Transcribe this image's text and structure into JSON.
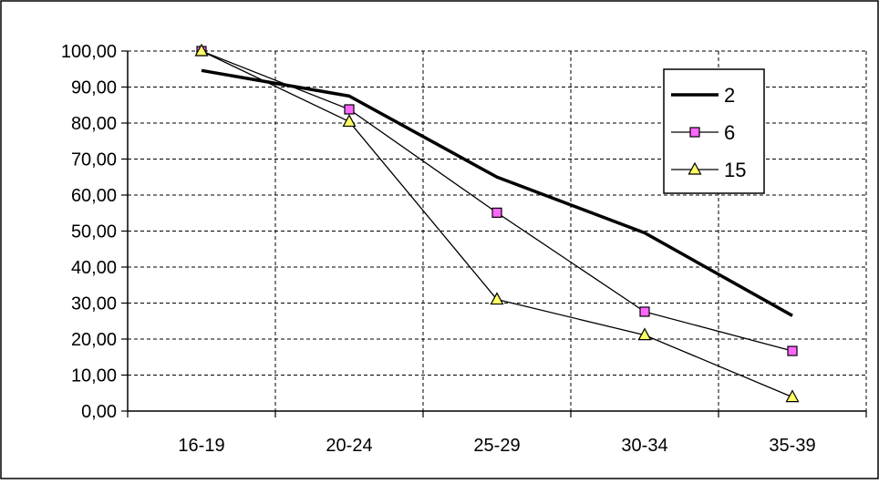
{
  "chart_data": {
    "type": "line",
    "categories": [
      "16-19",
      "20-24",
      "25-29",
      "30-34",
      "35-39"
    ],
    "y_ticks": [
      "0,00",
      "10,00",
      "20,00",
      "30,00",
      "40,00",
      "50,00",
      "60,00",
      "70,00",
      "80,00",
      "90,00",
      "100,00"
    ],
    "ylim": [
      0,
      100
    ],
    "grid": true,
    "legend_position": "top-right",
    "series": [
      {
        "name": "2",
        "values": [
          94.6,
          87.5,
          65.0,
          49.5,
          26.5
        ],
        "color": "#000000",
        "marker": "none",
        "line": "thick"
      },
      {
        "name": "6",
        "values": [
          100.0,
          83.8,
          55.1,
          27.6,
          16.7
        ],
        "color": "#000000",
        "marker": "square",
        "marker_color": "#ff66ff",
        "line": "thin"
      },
      {
        "name": "15",
        "values": [
          100.0,
          80.4,
          31.0,
          21.1,
          3.9
        ],
        "color": "#000000",
        "marker": "triangle",
        "marker_color": "#ffff66",
        "line": "thin"
      }
    ]
  }
}
